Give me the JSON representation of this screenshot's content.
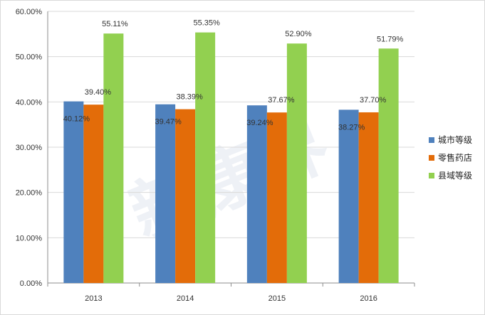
{
  "chart_data": {
    "type": "bar",
    "categories": [
      "2013",
      "2014",
      "2015",
      "2016"
    ],
    "series": [
      {
        "name": "城市等级",
        "values": [
          40.12,
          39.47,
          39.24,
          38.27
        ],
        "labels": [
          "40.12%",
          "39.47%",
          "39.24%",
          "38.27%"
        ],
        "color": "#4f81bd"
      },
      {
        "name": "零售药店",
        "values": [
          39.4,
          38.39,
          37.67,
          37.7
        ],
        "labels": [
          "39.40%",
          "38.39%",
          "37.67%",
          "37.70%"
        ],
        "color": "#e36c09"
      },
      {
        "name": "县域等级",
        "values": [
          55.11,
          55.35,
          52.9,
          51.79
        ],
        "labels": [
          "55.11%",
          "55.35%",
          "52.90%",
          "51.79%"
        ],
        "color": "#92d050"
      }
    ],
    "ylim": [
      0,
      60
    ],
    "yticks": [
      "0.00%",
      "10.00%",
      "20.00%",
      "30.00%",
      "40.00%",
      "50.00%",
      "60.00%"
    ],
    "grid": true,
    "legend_position": "right"
  },
  "watermark": "新康界"
}
